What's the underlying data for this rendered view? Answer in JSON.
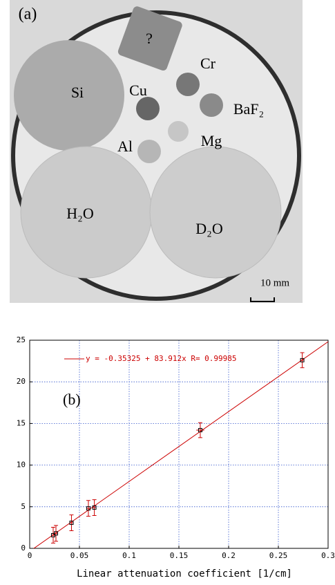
{
  "image_panel": {
    "label": "(a)",
    "labels": [
      "?",
      "Si",
      "Cu",
      "Cr",
      "BaF₂",
      "Al",
      "Mg",
      "H₂O",
      "D₂O"
    ],
    "scale_bar": "10 mm"
  },
  "chart_data": {
    "type": "scatter",
    "annotation": "(b)",
    "x_label": "Linear attenuation coefficient   [1/cm]",
    "series": [
      {
        "name": null,
        "color": "#cc0000",
        "x": [
          0.0236,
          0.0264,
          0.042,
          0.059,
          0.065,
          0.1715,
          0.274
        ],
        "values": [
          1.58,
          1.8,
          3.07,
          4.8,
          4.9,
          14.2,
          22.6
        ],
        "errors": [
          0.95,
          0.95,
          0.95,
          0.95,
          0.95,
          0.9,
          0.9
        ],
        "xerrors": [
          0.002,
          0.002,
          0.002,
          0.002,
          0.002,
          0.004,
          0.002
        ]
      }
    ],
    "fit": {
      "slope": 83.912,
      "intercept": -0.35325,
      "label": "y = -0.35325 + 83.912x   R= 0.99985",
      "color": "#cc0000"
    },
    "xlim": [
      0,
      0.3
    ],
    "xticks": [
      0,
      0.05,
      0.1,
      0.15,
      0.2,
      0.25,
      0.3
    ],
    "ylim": [
      0,
      25
    ],
    "yticks": [
      0,
      5,
      10,
      15,
      20,
      25
    ],
    "grid": true
  }
}
